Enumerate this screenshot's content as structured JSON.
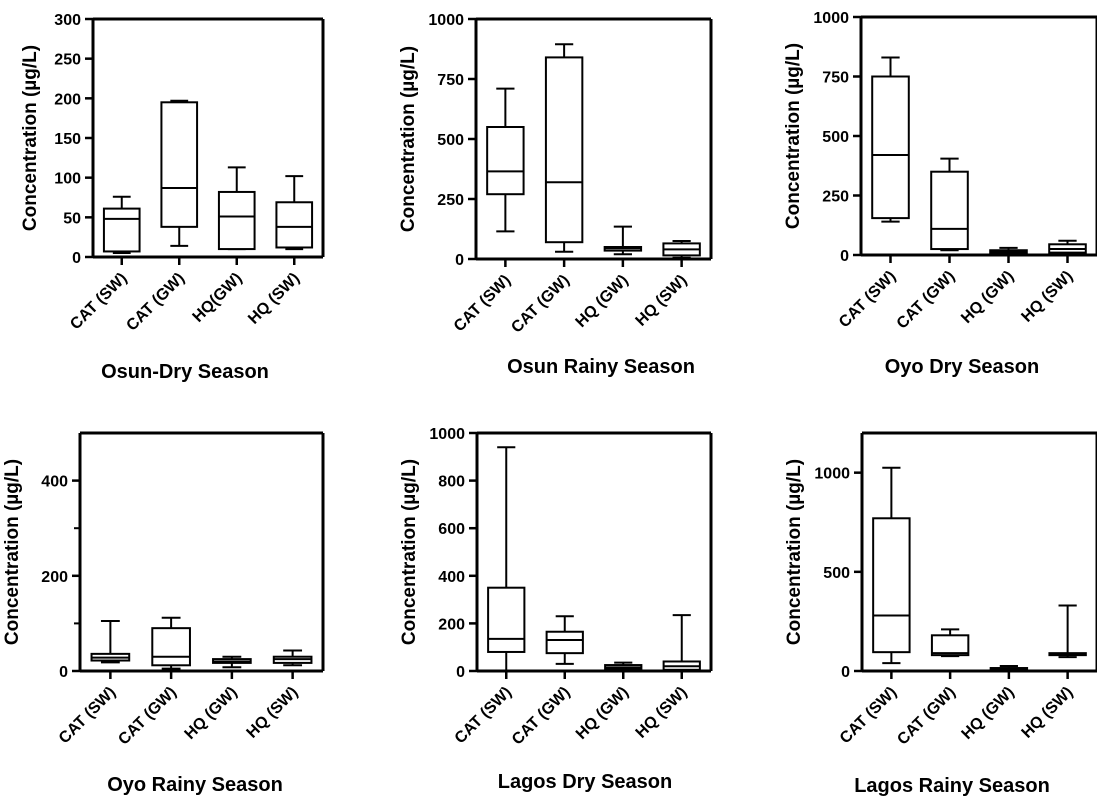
{
  "chart_data": [
    {
      "type": "box",
      "title": "Osun-Dry Season",
      "ylabel": "Concentration (µg/L)",
      "ylim": [
        0,
        300
      ],
      "yticks": [
        0,
        50,
        100,
        150,
        200,
        250,
        300
      ],
      "categories": [
        "CAT (SW)",
        "CAT (GW)",
        "HQ(GW)",
        "HQ (SW)"
      ],
      "boxes": [
        {
          "min": 5,
          "q1": 7,
          "median": 48,
          "q3": 61,
          "max": 76
        },
        {
          "min": 14,
          "q1": 38,
          "median": 87,
          "q3": 195,
          "max": 197
        },
        {
          "min": 10,
          "q1": 10,
          "median": 51,
          "q3": 82,
          "max": 113
        },
        {
          "min": 10,
          "q1": 12,
          "median": 38,
          "q3": 69,
          "max": 102
        }
      ]
    },
    {
      "type": "box",
      "title": "Osun Rainy Season",
      "ylabel": "Concentration (µg/L)",
      "ylim": [
        0,
        1000
      ],
      "yticks": [
        0,
        250,
        500,
        750,
        1000
      ],
      "categories": [
        "CAT (SW)",
        "CAT (GW)",
        "HQ (GW)",
        "HQ (SW)"
      ],
      "boxes": [
        {
          "min": 115,
          "q1": 270,
          "median": 365,
          "q3": 550,
          "max": 710
        },
        {
          "min": 30,
          "q1": 70,
          "median": 320,
          "q3": 840,
          "max": 895
        },
        {
          "min": 20,
          "q1": 35,
          "median": 45,
          "q3": 50,
          "max": 135
        },
        {
          "min": 5,
          "q1": 15,
          "median": 40,
          "q3": 65,
          "max": 75
        }
      ]
    },
    {
      "type": "box",
      "title": "Oyo Dry Season",
      "ylabel": "Concentration (µg/L)",
      "ylim": [
        0,
        1000
      ],
      "yticks": [
        0,
        250,
        500,
        750,
        1000
      ],
      "categories": [
        "CAT (SW)",
        "CAT (GW)",
        "HQ (GW)",
        "HQ (SW)"
      ],
      "boxes": [
        {
          "min": 140,
          "q1": 155,
          "median": 420,
          "q3": 750,
          "max": 830
        },
        {
          "min": 20,
          "q1": 25,
          "median": 110,
          "q3": 350,
          "max": 405
        },
        {
          "min": 5,
          "q1": 10,
          "median": 15,
          "q3": 20,
          "max": 30
        },
        {
          "min": 5,
          "q1": 10,
          "median": 25,
          "q3": 45,
          "max": 60
        }
      ]
    },
    {
      "type": "box",
      "title": "Oyo Rainy Season",
      "ylabel": "Concentration (µg/L)",
      "ylim": [
        0,
        500
      ],
      "yticks": [
        0,
        200,
        400
      ],
      "minor_ticks": [
        100,
        300
      ],
      "categories": [
        "CAT (SW)",
        "CAT (GW)",
        "HQ (GW)",
        "HQ (SW)"
      ],
      "boxes": [
        {
          "min": 18,
          "q1": 22,
          "median": 28,
          "q3": 36,
          "max": 105
        },
        {
          "min": 5,
          "q1": 12,
          "median": 30,
          "q3": 90,
          "max": 112
        },
        {
          "min": 8,
          "q1": 17,
          "median": 20,
          "q3": 25,
          "max": 30
        },
        {
          "min": 12,
          "q1": 17,
          "median": 25,
          "q3": 30,
          "max": 43
        }
      ]
    },
    {
      "type": "box",
      "title": "Lagos Dry Season",
      "ylabel": "Concentration (µg/L)",
      "ylim": [
        0,
        1000
      ],
      "yticks": [
        0,
        200,
        400,
        600,
        800,
        1000
      ],
      "categories": [
        "CAT (SW)",
        "CAT (GW)",
        "HQ (GW)",
        "HQ (SW)"
      ],
      "boxes": [
        {
          "min": 0,
          "q1": 80,
          "median": 135,
          "q3": 350,
          "max": 940
        },
        {
          "min": 30,
          "q1": 75,
          "median": 130,
          "q3": 165,
          "max": 230
        },
        {
          "min": 5,
          "q1": 10,
          "median": 15,
          "q3": 25,
          "max": 35
        },
        {
          "min": 0,
          "q1": 5,
          "median": 20,
          "q3": 40,
          "max": 235
        }
      ]
    },
    {
      "type": "box",
      "title": "Lagos Rainy Season",
      "ylabel": "Concentration (µg/L)",
      "ylim": [
        0,
        1200
      ],
      "yticks": [
        0,
        500,
        1000
      ],
      "categories": [
        "CAT (SW)",
        "CAT (GW)",
        "HQ (GW)",
        "HQ (SW)"
      ],
      "boxes": [
        {
          "min": 40,
          "q1": 95,
          "median": 280,
          "q3": 770,
          "max": 1025
        },
        {
          "min": 75,
          "q1": 80,
          "median": 90,
          "q3": 180,
          "max": 210
        },
        {
          "min": 0,
          "q1": 5,
          "median": 10,
          "q3": 15,
          "max": 25
        },
        {
          "min": 70,
          "q1": 80,
          "median": 85,
          "q3": 90,
          "max": 330
        }
      ]
    }
  ]
}
